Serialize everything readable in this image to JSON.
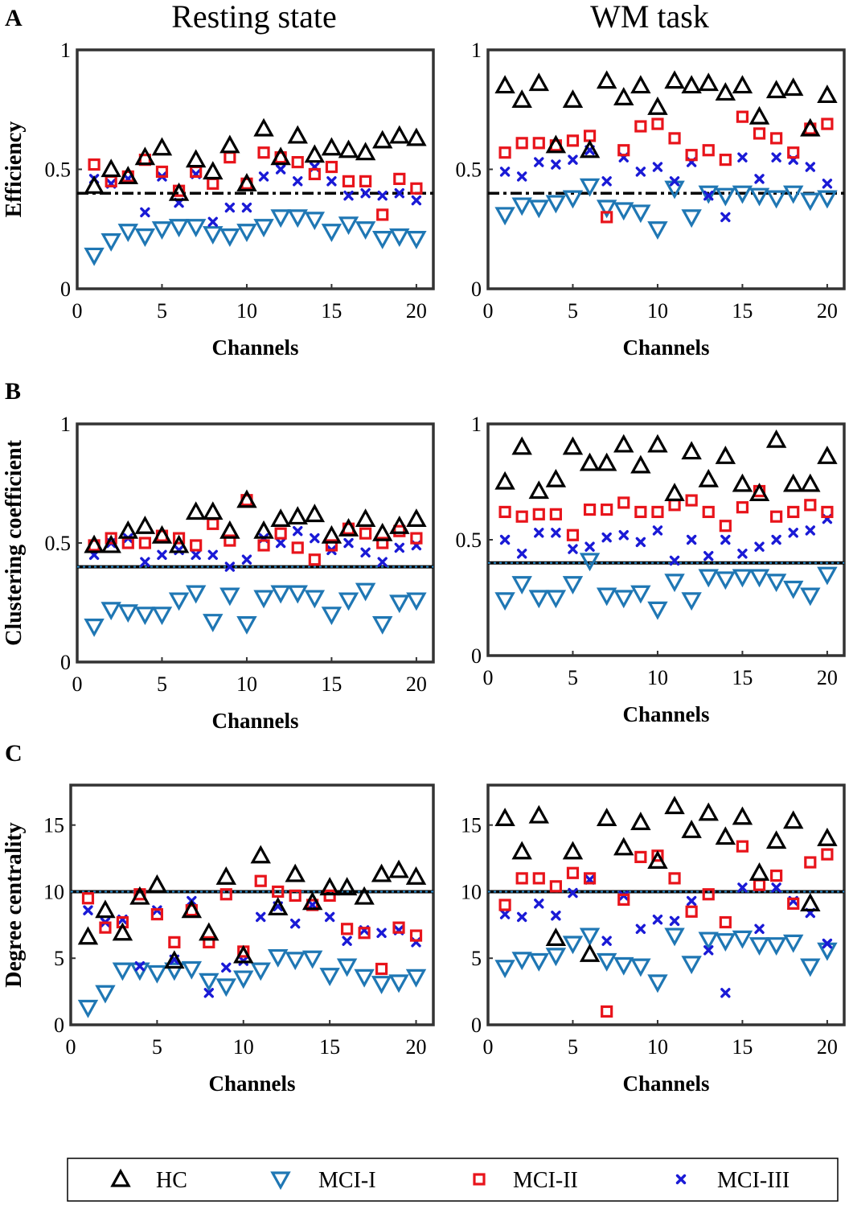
{
  "figure": {
    "col_titles": [
      "Resting state",
      "WM task"
    ],
    "row_letters": [
      "A",
      "B",
      "C"
    ],
    "legend": [
      {
        "key": "HC",
        "label": "HC",
        "marker": "triangle-up",
        "color": "#000000"
      },
      {
        "key": "MCI1",
        "label": "MCI-I",
        "marker": "triangle-down",
        "color": "#1f77b4"
      },
      {
        "key": "MCI2",
        "label": "MCI-II",
        "marker": "square",
        "color": "#e8141b"
      },
      {
        "key": "MCI3",
        "label": "MCI-III",
        "marker": "x",
        "color": "#1a1ad6"
      }
    ]
  },
  "chart_data": [
    {
      "type": "scatter",
      "row": 0,
      "col": 0,
      "title": "Resting state",
      "ylabel": "Efficiency",
      "xlabel": "Channels",
      "xlim": [
        0,
        21
      ],
      "ylim": [
        0,
        1
      ],
      "xticks": [
        0,
        5,
        10,
        15,
        20
      ],
      "xtick_labels": [
        "0",
        "5",
        "10",
        "15",
        "20"
      ],
      "yticks": [
        0,
        0.5,
        1
      ],
      "ytick_labels": [
        "0",
        "0.5",
        "1"
      ],
      "threshold": 0.4,
      "threshold_style": "black-dashdot",
      "x": [
        1,
        2,
        3,
        4,
        5,
        6,
        7,
        8,
        9,
        10,
        11,
        12,
        13,
        14,
        15,
        16,
        17,
        18,
        19,
        20
      ],
      "series": [
        {
          "name": "HC",
          "values": [
            0.43,
            0.5,
            0.47,
            0.55,
            0.59,
            0.4,
            0.54,
            0.49,
            0.6,
            0.44,
            0.67,
            0.55,
            0.64,
            0.56,
            0.59,
            0.58,
            0.57,
            0.62,
            0.64,
            0.63
          ]
        },
        {
          "name": "MCI-I",
          "values": [
            0.14,
            0.2,
            0.24,
            0.22,
            0.25,
            0.26,
            0.26,
            0.23,
            0.22,
            0.24,
            0.26,
            0.3,
            0.3,
            0.29,
            0.24,
            0.27,
            0.25,
            0.21,
            0.22,
            0.21
          ]
        },
        {
          "name": "MCI-II",
          "values": [
            0.52,
            0.45,
            0.47,
            0.54,
            0.49,
            0.41,
            0.49,
            0.44,
            0.55,
            0.44,
            0.57,
            0.55,
            0.53,
            0.48,
            0.51,
            0.45,
            0.45,
            0.31,
            0.46,
            0.42
          ]
        },
        {
          "name": "MCI-III",
          "values": [
            0.46,
            0.44,
            0.46,
            0.32,
            0.47,
            0.36,
            0.48,
            0.28,
            0.34,
            0.34,
            0.47,
            0.5,
            0.45,
            0.51,
            0.45,
            0.39,
            0.4,
            0.39,
            0.4,
            0.37
          ]
        }
      ]
    },
    {
      "type": "scatter",
      "row": 0,
      "col": 1,
      "title": "WM task",
      "ylabel": "",
      "xlabel": "Channels",
      "xlim": [
        0,
        21
      ],
      "ylim": [
        0,
        1
      ],
      "xticks": [
        0,
        5,
        10,
        15,
        20
      ],
      "xtick_labels": [
        "0",
        "5",
        "10",
        "15",
        "20"
      ],
      "yticks": [
        0,
        0.5,
        1
      ],
      "ytick_labels": [
        "0",
        "0.5",
        "1"
      ],
      "threshold": 0.4,
      "threshold_style": "black-dashdot",
      "x": [
        1,
        2,
        3,
        4,
        5,
        6,
        7,
        8,
        9,
        10,
        11,
        12,
        13,
        14,
        15,
        16,
        17,
        18,
        19,
        20
      ],
      "series": [
        {
          "name": "HC",
          "values": [
            0.85,
            0.79,
            0.86,
            0.6,
            0.79,
            0.58,
            0.87,
            0.8,
            0.85,
            0.76,
            0.87,
            0.85,
            0.86,
            0.82,
            0.85,
            0.72,
            0.83,
            0.84,
            0.67,
            0.81
          ]
        },
        {
          "name": "MCI-I",
          "values": [
            0.31,
            0.35,
            0.34,
            0.36,
            0.38,
            0.43,
            0.34,
            0.33,
            0.32,
            0.25,
            0.42,
            0.3,
            0.4,
            0.39,
            0.4,
            0.39,
            0.38,
            0.4,
            0.37,
            0.38
          ]
        },
        {
          "name": "MCI-II",
          "values": [
            0.57,
            0.61,
            0.61,
            0.6,
            0.62,
            0.64,
            0.3,
            0.58,
            0.68,
            0.69,
            0.63,
            0.56,
            0.58,
            0.54,
            0.72,
            0.65,
            0.63,
            0.57,
            0.67,
            0.69
          ]
        },
        {
          "name": "MCI-III",
          "values": [
            0.49,
            0.47,
            0.53,
            0.52,
            0.54,
            0.58,
            0.45,
            0.55,
            0.49,
            0.51,
            0.45,
            0.53,
            0.39,
            0.3,
            0.55,
            0.46,
            0.55,
            0.54,
            0.51,
            0.44
          ]
        }
      ]
    },
    {
      "type": "scatter",
      "row": 1,
      "col": 0,
      "title": "",
      "ylabel": "Clustering coefficient",
      "xlabel": "Channels",
      "xlim": [
        0,
        21
      ],
      "ylim": [
        0,
        1
      ],
      "xticks": [
        0,
        5,
        10,
        15,
        20
      ],
      "xtick_labels": [
        "0",
        "5",
        "10",
        "15",
        "20"
      ],
      "yticks": [
        0,
        0.5,
        1
      ],
      "ytick_labels": [
        "0",
        "0.5",
        "1"
      ],
      "threshold": 0.4,
      "threshold_style": "black-blue-dashed",
      "x": [
        1,
        2,
        3,
        4,
        5,
        6,
        7,
        8,
        9,
        10,
        11,
        12,
        13,
        14,
        15,
        16,
        17,
        18,
        19,
        20
      ],
      "series": [
        {
          "name": "HC",
          "values": [
            0.49,
            0.49,
            0.55,
            0.57,
            0.53,
            0.49,
            0.63,
            0.63,
            0.55,
            0.68,
            0.55,
            0.6,
            0.61,
            0.62,
            0.53,
            0.56,
            0.6,
            0.54,
            0.57,
            0.6
          ]
        },
        {
          "name": "MCI-I",
          "values": [
            0.15,
            0.22,
            0.21,
            0.2,
            0.2,
            0.26,
            0.29,
            0.17,
            0.28,
            0.16,
            0.27,
            0.29,
            0.29,
            0.27,
            0.2,
            0.26,
            0.3,
            0.16,
            0.25,
            0.26
          ]
        },
        {
          "name": "MCI-II",
          "values": [
            0.49,
            0.52,
            0.5,
            0.5,
            0.53,
            0.52,
            0.49,
            0.58,
            0.51,
            0.68,
            0.49,
            0.54,
            0.48,
            0.43,
            0.49,
            0.56,
            0.54,
            0.5,
            0.55,
            0.52
          ]
        },
        {
          "name": "MCI-III",
          "values": [
            0.45,
            0.5,
            0.52,
            0.42,
            0.45,
            0.47,
            0.45,
            0.45,
            0.4,
            0.43,
            0.52,
            0.5,
            0.55,
            0.52,
            0.47,
            0.5,
            0.46,
            0.42,
            0.48,
            0.49
          ]
        }
      ]
    },
    {
      "type": "scatter",
      "row": 1,
      "col": 1,
      "title": "",
      "ylabel": "",
      "xlabel": "Channels",
      "xlim": [
        0,
        21
      ],
      "ylim": [
        0,
        1
      ],
      "xticks": [
        0,
        5,
        10,
        15,
        20
      ],
      "xtick_labels": [
        "0",
        "5",
        "10",
        "15",
        "20"
      ],
      "yticks": [
        0,
        0.5,
        1
      ],
      "ytick_labels": [
        "0",
        "0.5",
        "1"
      ],
      "threshold": 0.4,
      "threshold_style": "black-blue-dashed",
      "x": [
        1,
        2,
        3,
        4,
        5,
        6,
        7,
        8,
        9,
        10,
        11,
        12,
        13,
        14,
        15,
        16,
        17,
        18,
        19,
        20
      ],
      "series": [
        {
          "name": "HC",
          "values": [
            0.75,
            0.9,
            0.71,
            0.76,
            0.9,
            0.83,
            0.83,
            0.91,
            0.82,
            0.91,
            0.7,
            0.88,
            0.76,
            0.86,
            0.74,
            0.7,
            0.93,
            0.74,
            0.74,
            0.86
          ]
        },
        {
          "name": "MCI-I",
          "values": [
            0.24,
            0.31,
            0.25,
            0.25,
            0.31,
            0.41,
            0.26,
            0.25,
            0.27,
            0.2,
            0.32,
            0.24,
            0.34,
            0.33,
            0.34,
            0.34,
            0.32,
            0.29,
            0.26,
            0.35
          ]
        },
        {
          "name": "MCI-II",
          "values": [
            0.62,
            0.6,
            0.61,
            0.61,
            0.52,
            0.63,
            0.63,
            0.66,
            0.62,
            0.62,
            0.65,
            0.67,
            0.62,
            0.56,
            0.64,
            0.71,
            0.6,
            0.62,
            0.65,
            0.62
          ]
        },
        {
          "name": "MCI-III",
          "values": [
            0.5,
            0.44,
            0.53,
            0.53,
            0.46,
            0.47,
            0.51,
            0.52,
            0.49,
            0.54,
            0.41,
            0.5,
            0.43,
            0.5,
            0.44,
            0.47,
            0.5,
            0.53,
            0.54,
            0.59
          ]
        }
      ]
    },
    {
      "type": "scatter",
      "row": 2,
      "col": 0,
      "title": "",
      "ylabel": "Degree centrality",
      "xlabel": "Channels",
      "xlim": [
        0,
        21
      ],
      "ylim": [
        0,
        18
      ],
      "xticks": [
        0,
        5,
        10,
        15,
        20
      ],
      "xtick_labels": [
        "0",
        "5",
        "10",
        "15",
        "20"
      ],
      "yticks": [
        0,
        5,
        10,
        15
      ],
      "ytick_labels": [
        "0",
        "5",
        "10",
        "15"
      ],
      "threshold": 10,
      "threshold_style": "black-blue-dashed",
      "x": [
        1,
        2,
        3,
        4,
        5,
        6,
        7,
        8,
        9,
        10,
        11,
        12,
        13,
        14,
        15,
        16,
        17,
        18,
        19,
        20
      ],
      "series": [
        {
          "name": "HC",
          "values": [
            6.6,
            8.6,
            6.9,
            9.6,
            10.5,
            4.8,
            8.6,
            6.9,
            11.1,
            5.2,
            12.7,
            8.8,
            11.3,
            9.2,
            10.3,
            10.3,
            9.6,
            11.3,
            11.6,
            11.1
          ]
        },
        {
          "name": "MCI-I",
          "values": [
            1.3,
            2.4,
            4.1,
            4.1,
            3.9,
            4.1,
            4.2,
            3.3,
            2.9,
            3.5,
            4.1,
            5.1,
            4.9,
            5.0,
            3.7,
            4.4,
            3.6,
            3.1,
            3.2,
            3.6
          ]
        },
        {
          "name": "MCI-II",
          "values": [
            9.5,
            7.3,
            7.7,
            9.8,
            8.3,
            6.2,
            8.6,
            6.2,
            9.8,
            5.5,
            10.8,
            10.0,
            9.7,
            9.0,
            9.7,
            7.2,
            6.9,
            4.2,
            7.3,
            6.7
          ]
        },
        {
          "name": "MCI-III",
          "values": [
            8.6,
            7.7,
            7.9,
            4.4,
            8.6,
            4.9,
            9.3,
            2.4,
            4.3,
            4.8,
            8.1,
            8.9,
            7.6,
            9.0,
            8.1,
            6.3,
            7.1,
            6.9,
            7.1,
            6.2
          ]
        }
      ]
    },
    {
      "type": "scatter",
      "row": 2,
      "col": 1,
      "title": "",
      "ylabel": "",
      "xlabel": "Channels",
      "xlim": [
        0,
        21
      ],
      "ylim": [
        0,
        18
      ],
      "xticks": [
        0,
        5,
        10,
        15,
        20
      ],
      "xtick_labels": [
        "0",
        "5",
        "10",
        "15",
        "20"
      ],
      "yticks": [
        0,
        5,
        10,
        15
      ],
      "ytick_labels": [
        "0",
        "5",
        "10",
        "15"
      ],
      "threshold": 10,
      "threshold_style": "black-blue-dashed",
      "x": [
        1,
        2,
        3,
        4,
        5,
        6,
        7,
        8,
        9,
        10,
        11,
        12,
        13,
        14,
        15,
        16,
        17,
        18,
        19,
        20
      ],
      "series": [
        {
          "name": "HC",
          "values": [
            15.5,
            13.0,
            15.7,
            6.5,
            13.0,
            5.3,
            15.5,
            13.3,
            15.2,
            12.3,
            16.4,
            14.6,
            15.9,
            14.1,
            15.6,
            11.4,
            13.8,
            15.3,
            9.1,
            14.0
          ]
        },
        {
          "name": "MCI-I",
          "values": [
            4.3,
            4.9,
            4.8,
            5.2,
            6.1,
            6.7,
            4.8,
            4.5,
            4.4,
            3.2,
            6.7,
            4.6,
            6.4,
            6.3,
            6.5,
            6.0,
            6.0,
            6.2,
            4.4,
            5.6
          ]
        },
        {
          "name": "MCI-II",
          "values": [
            9.0,
            11.0,
            11.0,
            10.4,
            11.4,
            11.0,
            1.0,
            9.4,
            12.6,
            12.7,
            11.0,
            8.5,
            9.8,
            7.7,
            13.4,
            10.5,
            11.2,
            9.1,
            12.2,
            12.8
          ]
        },
        {
          "name": "MCI-III",
          "values": [
            8.3,
            8.1,
            9.1,
            8.2,
            9.9,
            10.9,
            6.3,
            9.7,
            7.2,
            7.9,
            7.8,
            9.3,
            5.6,
            2.4,
            10.3,
            7.2,
            10.3,
            9.3,
            8.4,
            6.1
          ]
        }
      ]
    }
  ]
}
